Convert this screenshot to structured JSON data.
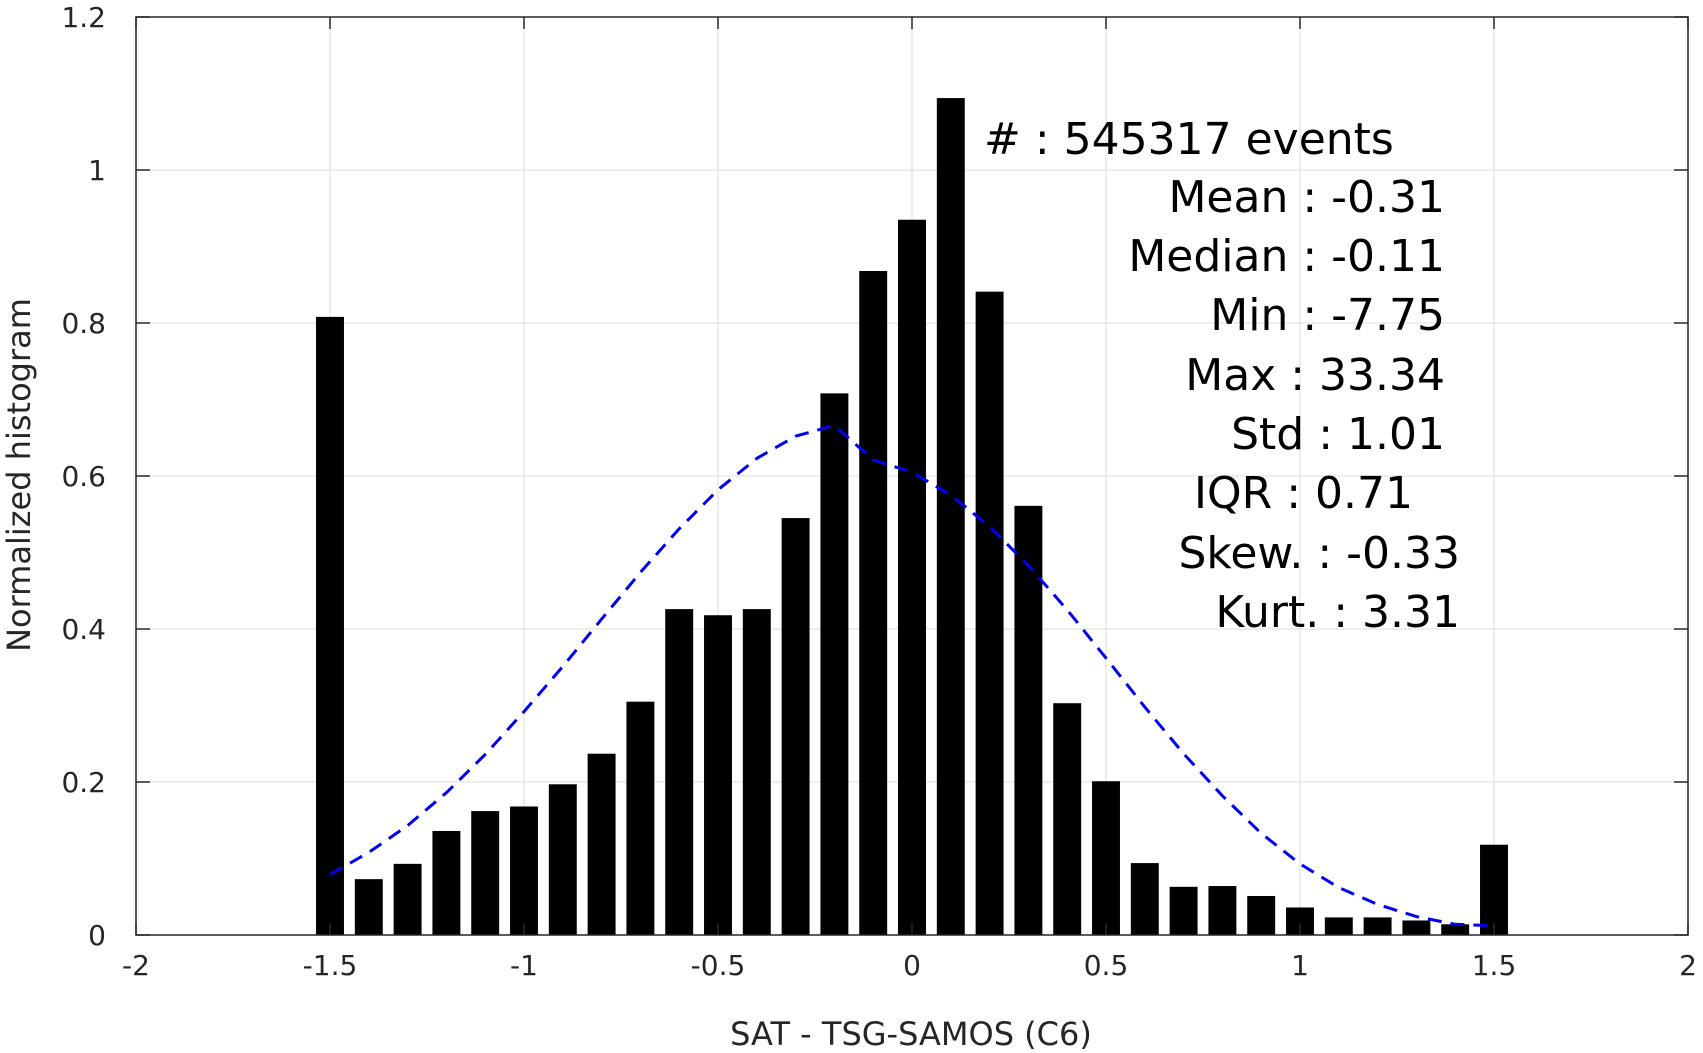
{
  "chart_data": {
    "type": "bar",
    "xlabel": "SAT - TSG-SAMOS (C6)",
    "ylabel": "Normalized histogram",
    "xlim": [
      -2,
      2
    ],
    "ylim": [
      0,
      1.2
    ],
    "grid": true,
    "x_ticks": [
      "-2",
      "-1.5",
      "-1",
      "-0.5",
      "0",
      "0.5",
      "1",
      "1.5",
      "2"
    ],
    "y_ticks": [
      "0",
      "0.2",
      "0.4",
      "0.6",
      "0.8",
      "1",
      "1.2"
    ],
    "bin_width": 0.1,
    "bars": {
      "x": [
        -1.5,
        -1.4,
        -1.3,
        -1.2,
        -1.1,
        -1.0,
        -0.9,
        -0.8,
        -0.7,
        -0.6,
        -0.5,
        -0.4,
        -0.3,
        -0.2,
        -0.1,
        0.0,
        0.1,
        0.2,
        0.3,
        0.4,
        0.5,
        0.6,
        0.7,
        0.8,
        0.9,
        1.0,
        1.1,
        1.2,
        1.3,
        1.4,
        1.5
      ],
      "values": [
        0.808,
        0.073,
        0.093,
        0.136,
        0.162,
        0.168,
        0.197,
        0.237,
        0.305,
        0.426,
        0.418,
        0.426,
        0.545,
        0.708,
        0.868,
        0.935,
        1.094,
        0.841,
        0.561,
        0.303,
        0.201,
        0.094,
        0.063,
        0.064,
        0.051,
        0.036,
        0.023,
        0.023,
        0.019,
        0.014,
        0.118
      ],
      "color": "#000000"
    },
    "fit_curve": {
      "style": "dashed",
      "color": "#0000ee",
      "x": [
        -1.5,
        -1.4,
        -1.3,
        -1.2,
        -1.1,
        -1.0,
        -0.9,
        -0.8,
        -0.7,
        -0.6,
        -0.5,
        -0.4,
        -0.3,
        -0.2,
        -0.1,
        0.0,
        0.1,
        0.2,
        0.3,
        0.4,
        0.5,
        0.6,
        0.7,
        0.8,
        0.9,
        1.0,
        1.1,
        1.2,
        1.3,
        1.4,
        1.5
      ],
      "y": [
        0.079,
        0.108,
        0.143,
        0.186,
        0.236,
        0.292,
        0.351,
        0.413,
        0.474,
        0.531,
        0.582,
        0.623,
        0.652,
        0.666,
        0.621,
        0.605,
        0.575,
        0.534,
        0.483,
        0.425,
        0.362,
        0.298,
        0.237,
        0.182,
        0.133,
        0.093,
        0.062,
        0.04,
        0.024,
        0.014,
        0.012
      ]
    },
    "annotations": [
      "#  : 545317 events",
      "Mean : -0.31",
      "Median : -0.11",
      "Min : -7.75",
      "Max : 33.34",
      "Std : 1.01",
      "IQR : 0.71",
      "Skew. : -0.33",
      "Kurt. : 3.31"
    ]
  }
}
